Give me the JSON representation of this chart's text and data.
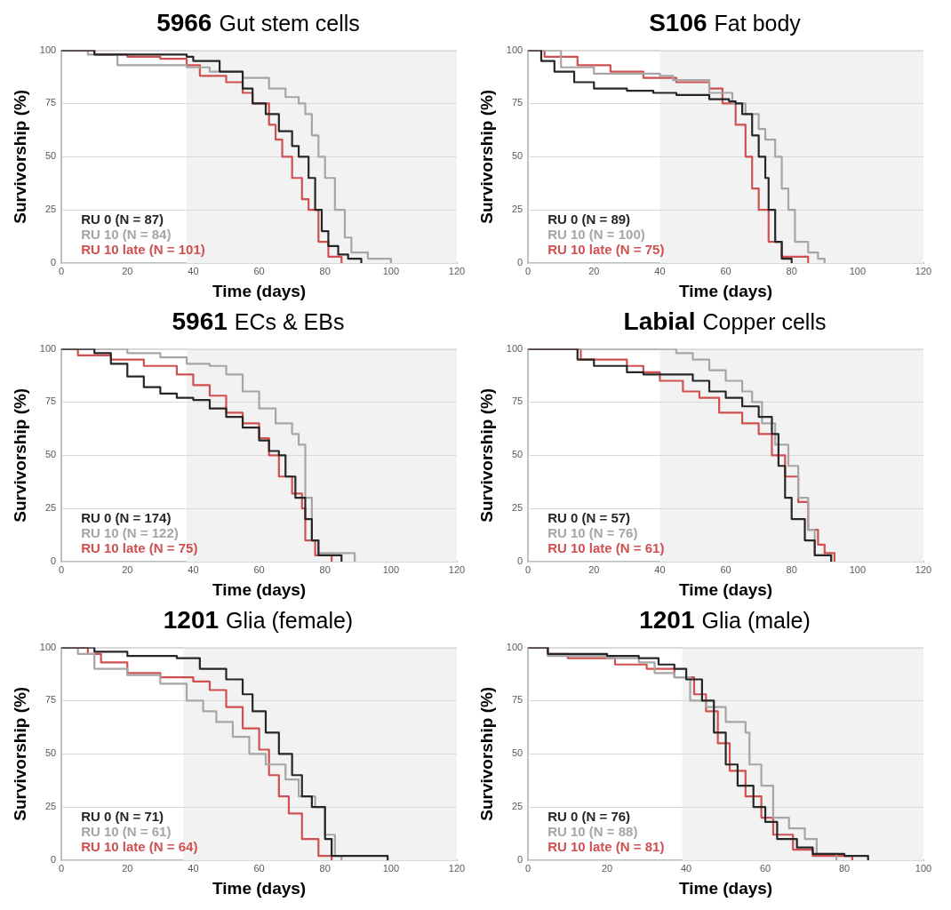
{
  "chart_data": [
    {
      "type": "step",
      "title": "5966",
      "subtitle": "Gut stem cells",
      "xlabel": "Time (days)",
      "ylabel": "Survivorship (%)",
      "xlim": [
        0,
        120
      ],
      "xticks": [
        0,
        20,
        40,
        60,
        80,
        100,
        120
      ],
      "ylim": [
        0,
        100
      ],
      "yticks": [
        0,
        25,
        50,
        75,
        100
      ],
      "grid": "y",
      "legend": "bottom left",
      "bands": [
        {
          "axis": "x",
          "from": 38,
          "to": 120,
          "color": "#f2f2f2"
        }
      ],
      "series": [
        {
          "name": "RU 0 (N = 87)",
          "color": "#262626",
          "x": [
            0,
            10,
            20,
            38,
            40,
            48,
            55,
            58,
            62,
            66,
            70,
            72,
            75,
            77,
            79,
            81,
            84,
            87,
            91
          ],
          "values": [
            100,
            98,
            98,
            97,
            95,
            90,
            82,
            75,
            70,
            62,
            55,
            50,
            40,
            25,
            15,
            8,
            4,
            2,
            0
          ]
        },
        {
          "name": "RU 10 (N = 84)",
          "color": "#a6a6a6",
          "x": [
            0,
            8,
            17,
            38,
            45,
            55,
            63,
            68,
            72,
            74,
            76,
            78,
            80,
            83,
            86,
            88,
            93,
            100
          ],
          "values": [
            100,
            98,
            93,
            92,
            90,
            87,
            82,
            78,
            75,
            70,
            60,
            50,
            40,
            25,
            12,
            5,
            2,
            0
          ]
        },
        {
          "name": "RU 10 late (N = 101)",
          "color": "#d05050",
          "x": [
            0,
            10,
            20,
            30,
            38,
            42,
            50,
            55,
            58,
            63,
            65,
            67,
            70,
            73,
            75,
            78,
            81,
            85
          ],
          "values": [
            100,
            98,
            97,
            96,
            93,
            88,
            85,
            80,
            75,
            65,
            58,
            50,
            40,
            30,
            25,
            10,
            3,
            0
          ]
        }
      ]
    },
    {
      "type": "step",
      "title": "S106",
      "subtitle": "Fat body",
      "xlabel": "Time (days)",
      "ylabel": "Survivorship (%)",
      "xlim": [
        0,
        120
      ],
      "xticks": [
        0,
        20,
        40,
        60,
        80,
        100,
        120
      ],
      "ylim": [
        0,
        100
      ],
      "yticks": [
        0,
        25,
        50,
        75,
        100
      ],
      "grid": "y",
      "legend": "bottom left",
      "bands": [
        {
          "axis": "x",
          "from": 40,
          "to": 120,
          "color": "#f2f2f2"
        }
      ],
      "series": [
        {
          "name": "RU 0 (N = 89)",
          "color": "#262626",
          "x": [
            0,
            4,
            8,
            14,
            20,
            30,
            38,
            45,
            55,
            61,
            63,
            65,
            68,
            70,
            72,
            73,
            75,
            77,
            80
          ],
          "values": [
            100,
            95,
            90,
            85,
            82,
            81,
            80,
            79,
            77,
            76,
            75,
            70,
            60,
            50,
            40,
            25,
            10,
            2,
            0
          ]
        },
        {
          "name": "RU 10 (N = 100)",
          "color": "#a6a6a6",
          "x": [
            0,
            8,
            10,
            20,
            40,
            44,
            55,
            62,
            66,
            70,
            72,
            75,
            77,
            79,
            81,
            85,
            88,
            90
          ],
          "values": [
            100,
            100,
            92,
            89,
            88,
            86,
            80,
            75,
            70,
            63,
            58,
            50,
            35,
            25,
            10,
            5,
            2,
            0
          ]
        },
        {
          "name": "RU 10 late (N = 75)",
          "color": "#d05050",
          "x": [
            0,
            5,
            15,
            25,
            35,
            45,
            55,
            59,
            63,
            66,
            68,
            70,
            73,
            77,
            85
          ],
          "values": [
            100,
            97,
            93,
            90,
            87,
            85,
            82,
            75,
            65,
            50,
            35,
            25,
            10,
            3,
            0
          ]
        }
      ]
    },
    {
      "type": "step",
      "title": "5961",
      "subtitle": "ECs & EBs",
      "xlabel": "Time (days)",
      "ylabel": "Survivorship (%)",
      "xlim": [
        0,
        120
      ],
      "xticks": [
        0,
        20,
        40,
        60,
        80,
        100,
        120
      ],
      "ylim": [
        0,
        100
      ],
      "yticks": [
        0,
        25,
        50,
        75,
        100
      ],
      "grid": "y",
      "legend": "bottom left",
      "bands": [
        {
          "axis": "x",
          "from": 38,
          "to": 120,
          "color": "#f2f2f2"
        }
      ],
      "series": [
        {
          "name": "RU 0 (N = 174)",
          "color": "#262626",
          "x": [
            0,
            7,
            10,
            15,
            20,
            25,
            30,
            35,
            40,
            45,
            50,
            55,
            60,
            63,
            66,
            68,
            71,
            74,
            76,
            78,
            85
          ],
          "values": [
            100,
            100,
            98,
            93,
            87,
            82,
            79,
            77,
            76,
            72,
            68,
            63,
            57,
            52,
            50,
            40,
            30,
            20,
            10,
            3,
            0
          ]
        },
        {
          "name": "RU 10 (N = 122)",
          "color": "#a6a6a6",
          "x": [
            0,
            10,
            20,
            30,
            38,
            45,
            50,
            55,
            60,
            65,
            70,
            72,
            74,
            76,
            78,
            85,
            89
          ],
          "values": [
            100,
            100,
            98,
            96,
            93,
            92,
            88,
            80,
            72,
            65,
            60,
            55,
            30,
            10,
            4,
            4,
            0
          ]
        },
        {
          "name": "RU 10 late (N = 75)",
          "color": "#d05050",
          "x": [
            0,
            5,
            15,
            25,
            35,
            40,
            45,
            50,
            55,
            60,
            63,
            66,
            70,
            73,
            74,
            77,
            82
          ],
          "values": [
            100,
            97,
            95,
            92,
            88,
            83,
            78,
            70,
            65,
            58,
            50,
            40,
            32,
            25,
            10,
            3,
            0
          ]
        }
      ]
    },
    {
      "type": "step",
      "title": "Labial",
      "subtitle": "Copper cells",
      "xlabel": "Time (days)",
      "ylabel": "Survivorship (%)",
      "xlim": [
        0,
        120
      ],
      "xticks": [
        0,
        20,
        40,
        60,
        80,
        100,
        120
      ],
      "ylim": [
        0,
        100
      ],
      "yticks": [
        0,
        25,
        50,
        75,
        100
      ],
      "grid": "y",
      "legend": "bottom left",
      "bands": [
        {
          "axis": "x",
          "from": 40,
          "to": 120,
          "color": "#f2f2f2"
        }
      ],
      "series": [
        {
          "name": "RU 0 (N = 57)",
          "color": "#262626",
          "x": [
            0,
            12,
            15,
            20,
            30,
            35,
            45,
            50,
            55,
            60,
            65,
            70,
            74,
            76,
            78,
            80,
            84,
            87,
            92
          ],
          "values": [
            100,
            100,
            95,
            92,
            89,
            88,
            88,
            85,
            80,
            77,
            73,
            68,
            60,
            45,
            30,
            20,
            10,
            3,
            0
          ]
        },
        {
          "name": "RU 10 (N = 76)",
          "color": "#a6a6a6",
          "x": [
            0,
            38,
            45,
            50,
            55,
            60,
            65,
            68,
            71,
            75,
            79,
            82,
            85,
            87,
            92
          ],
          "values": [
            100,
            100,
            98,
            95,
            90,
            85,
            80,
            75,
            65,
            55,
            45,
            30,
            15,
            3,
            0
          ]
        },
        {
          "name": "RU 10 late (N = 61)",
          "color": "#d05050",
          "x": [
            0,
            15,
            16,
            30,
            35,
            40,
            47,
            52,
            58,
            65,
            70,
            74,
            78,
            82,
            85,
            88,
            90,
            93
          ],
          "values": [
            100,
            100,
            95,
            92,
            89,
            85,
            80,
            77,
            70,
            65,
            60,
            50,
            40,
            28,
            15,
            8,
            4,
            0
          ]
        }
      ]
    },
    {
      "type": "step",
      "title": "1201",
      "subtitle": "Glia (female)",
      "xlabel": "Time (days)",
      "ylabel": "Survivorship (%)",
      "xlim": [
        0,
        120
      ],
      "xticks": [
        0,
        20,
        40,
        60,
        80,
        100,
        120
      ],
      "ylim": [
        0,
        100
      ],
      "yticks": [
        0,
        25,
        50,
        75,
        100
      ],
      "grid": "y",
      "legend": "bottom left",
      "bands": [
        {
          "axis": "x",
          "from": 37,
          "to": 120,
          "color": "#f2f2f2"
        }
      ],
      "series": [
        {
          "name": "RU 0 (N = 71)",
          "color": "#262626",
          "x": [
            0,
            5,
            10,
            20,
            35,
            42,
            50,
            55,
            58,
            62,
            66,
            70,
            73,
            76,
            80,
            82,
            95,
            99
          ],
          "values": [
            100,
            100,
            98,
            96,
            95,
            90,
            85,
            78,
            70,
            60,
            50,
            40,
            30,
            25,
            10,
            2,
            2,
            0
          ]
        },
        {
          "name": "RU 10 (N = 61)",
          "color": "#a6a6a6",
          "x": [
            0,
            5,
            10,
            20,
            30,
            38,
            43,
            47,
            52,
            57,
            62,
            68,
            72,
            77,
            80,
            83,
            85
          ],
          "values": [
            100,
            97,
            90,
            87,
            83,
            75,
            70,
            65,
            58,
            50,
            45,
            38,
            30,
            25,
            12,
            2,
            0
          ]
        },
        {
          "name": "RU 10 late (N = 64)",
          "color": "#d05050",
          "x": [
            0,
            8,
            12,
            20,
            30,
            40,
            45,
            50,
            55,
            60,
            63,
            66,
            69,
            73,
            78,
            82
          ],
          "values": [
            100,
            97,
            93,
            88,
            86,
            84,
            80,
            72,
            62,
            52,
            40,
            30,
            22,
            10,
            2,
            0
          ]
        }
      ]
    },
    {
      "type": "step",
      "title": "1201",
      "subtitle": "Glia (male)",
      "xlabel": "Time (days)",
      "ylabel": "Survivorship (%)",
      "xlim": [
        0,
        100
      ],
      "xticks": [
        0,
        20,
        40,
        60,
        80,
        100
      ],
      "ylim": [
        0,
        100
      ],
      "yticks": [
        0,
        25,
        50,
        75,
        100
      ],
      "grid": "y",
      "legend": "bottom left",
      "bands": [
        {
          "axis": "x",
          "from": 39,
          "to": 100,
          "color": "#f2f2f2"
        }
      ],
      "series": [
        {
          "name": "RU 0 (N = 76)",
          "color": "#262626",
          "x": [
            0,
            5,
            20,
            28,
            33,
            37,
            40,
            44,
            47,
            50,
            53,
            57,
            60,
            63,
            68,
            72,
            80,
            86
          ],
          "values": [
            100,
            97,
            96,
            95,
            92,
            90,
            85,
            75,
            60,
            45,
            35,
            25,
            18,
            10,
            6,
            3,
            2,
            0
          ]
        },
        {
          "name": "RU 10 (N = 88)",
          "color": "#a6a6a6",
          "x": [
            0,
            5,
            20,
            28,
            32,
            37,
            41,
            45,
            50,
            55,
            56,
            59,
            62,
            66,
            70,
            73,
            78
          ],
          "values": [
            100,
            96,
            95,
            93,
            88,
            86,
            75,
            72,
            65,
            60,
            45,
            35,
            20,
            15,
            10,
            3,
            0
          ]
        },
        {
          "name": "RU 10 late (N = 81)",
          "color": "#d05050",
          "x": [
            0,
            5,
            10,
            22,
            30,
            37,
            42,
            45,
            48,
            51,
            55,
            59,
            62,
            67,
            72,
            82
          ],
          "values": [
            100,
            97,
            95,
            92,
            90,
            86,
            78,
            70,
            55,
            42,
            30,
            20,
            12,
            5,
            2,
            0
          ]
        }
      ]
    }
  ]
}
